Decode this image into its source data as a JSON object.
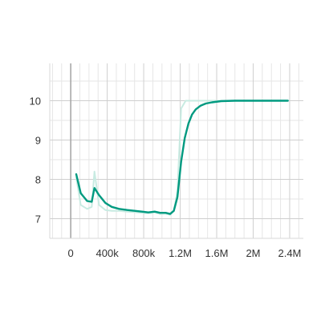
{
  "chart_data": {
    "type": "line",
    "title": "",
    "xlabel": "",
    "ylabel": "",
    "xlim": [
      -230000,
      2550000
    ],
    "ylim": [
      6.5,
      10.95
    ],
    "x_ticks": [
      0,
      400000,
      800000,
      1200000,
      1600000,
      2000000,
      2400000
    ],
    "x_tick_labels": [
      "0",
      "400k",
      "800k",
      "1.2M",
      "1.6M",
      "2M",
      "2.4M"
    ],
    "y_ticks": [
      7,
      8,
      9,
      10
    ],
    "y_tick_labels": [
      "7",
      "8",
      "9",
      "10"
    ],
    "grid": true,
    "legend": "none",
    "series": [
      {
        "role": "raw",
        "color": "#c8ebe2",
        "x": [
          60000,
          110000,
          180000,
          230000,
          260000,
          310000,
          380000,
          450000,
          530000,
          620000,
          700000,
          780000,
          850000,
          920000,
          980000,
          1040000,
          1090000,
          1130000,
          1170000,
          1210000,
          1260000,
          1310000,
          1350000,
          1400000,
          1500000,
          1600000,
          1700000,
          1800000,
          2000000,
          2200000,
          2380000
        ],
        "values": [
          8.05,
          7.35,
          7.25,
          7.3,
          8.2,
          7.35,
          7.22,
          7.2,
          7.2,
          7.18,
          7.17,
          7.15,
          7.14,
          7.16,
          7.12,
          7.13,
          7.1,
          7.2,
          7.7,
          9.8,
          10.0,
          10.0,
          10.0,
          10.0,
          10.0,
          10.0,
          10.0,
          10.0,
          10.0,
          10.0,
          10.0
        ]
      },
      {
        "role": "smoothed",
        "color": "#009a80",
        "x": [
          60000,
          110000,
          180000,
          230000,
          260000,
          310000,
          380000,
          450000,
          530000,
          620000,
          700000,
          780000,
          850000,
          920000,
          980000,
          1040000,
          1090000,
          1130000,
          1170000,
          1210000,
          1250000,
          1290000,
          1330000,
          1370000,
          1420000,
          1480000,
          1550000,
          1650000,
          1800000,
          2000000,
          2200000,
          2380000
        ],
        "values": [
          8.13,
          7.65,
          7.45,
          7.43,
          7.78,
          7.6,
          7.4,
          7.3,
          7.25,
          7.22,
          7.2,
          7.18,
          7.16,
          7.18,
          7.15,
          7.15,
          7.12,
          7.2,
          7.55,
          8.45,
          9.05,
          9.42,
          9.65,
          9.78,
          9.87,
          9.93,
          9.96,
          9.99,
          10.0,
          10.0,
          10.0,
          10.0
        ]
      }
    ]
  }
}
